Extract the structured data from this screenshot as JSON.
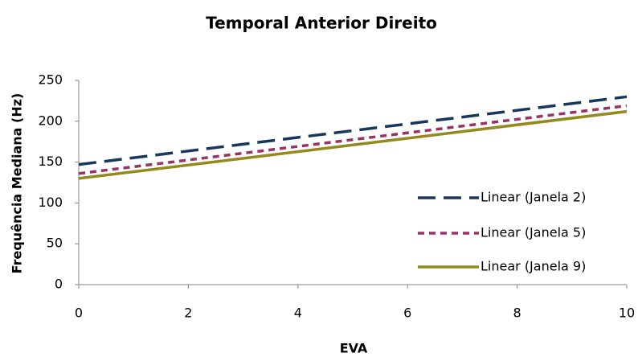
{
  "chart_data": {
    "type": "line",
    "title": "Temporal Anterior Direito",
    "x_label": "EVA",
    "y_label": "Frequência Mediana (Hz)",
    "x": [
      0,
      10
    ],
    "series": [
      {
        "name": "Linear (Janela 2)",
        "color": "#17375e",
        "style": "dash",
        "values": [
          147,
          230
        ]
      },
      {
        "name": "Linear (Janela 5)",
        "color": "#993366",
        "style": "dot",
        "values": [
          136,
          219
        ]
      },
      {
        "name": "Linear (Janela 9)",
        "color": "#948a1b",
        "style": "solid",
        "values": [
          130,
          212
        ]
      }
    ],
    "xlim": [
      0,
      10
    ],
    "xticks": [
      0,
      2,
      4,
      6,
      8,
      10
    ],
    "ylim": [
      0,
      250
    ],
    "yticks": [
      0,
      50,
      100,
      150,
      200,
      250
    ],
    "legend": "right"
  }
}
